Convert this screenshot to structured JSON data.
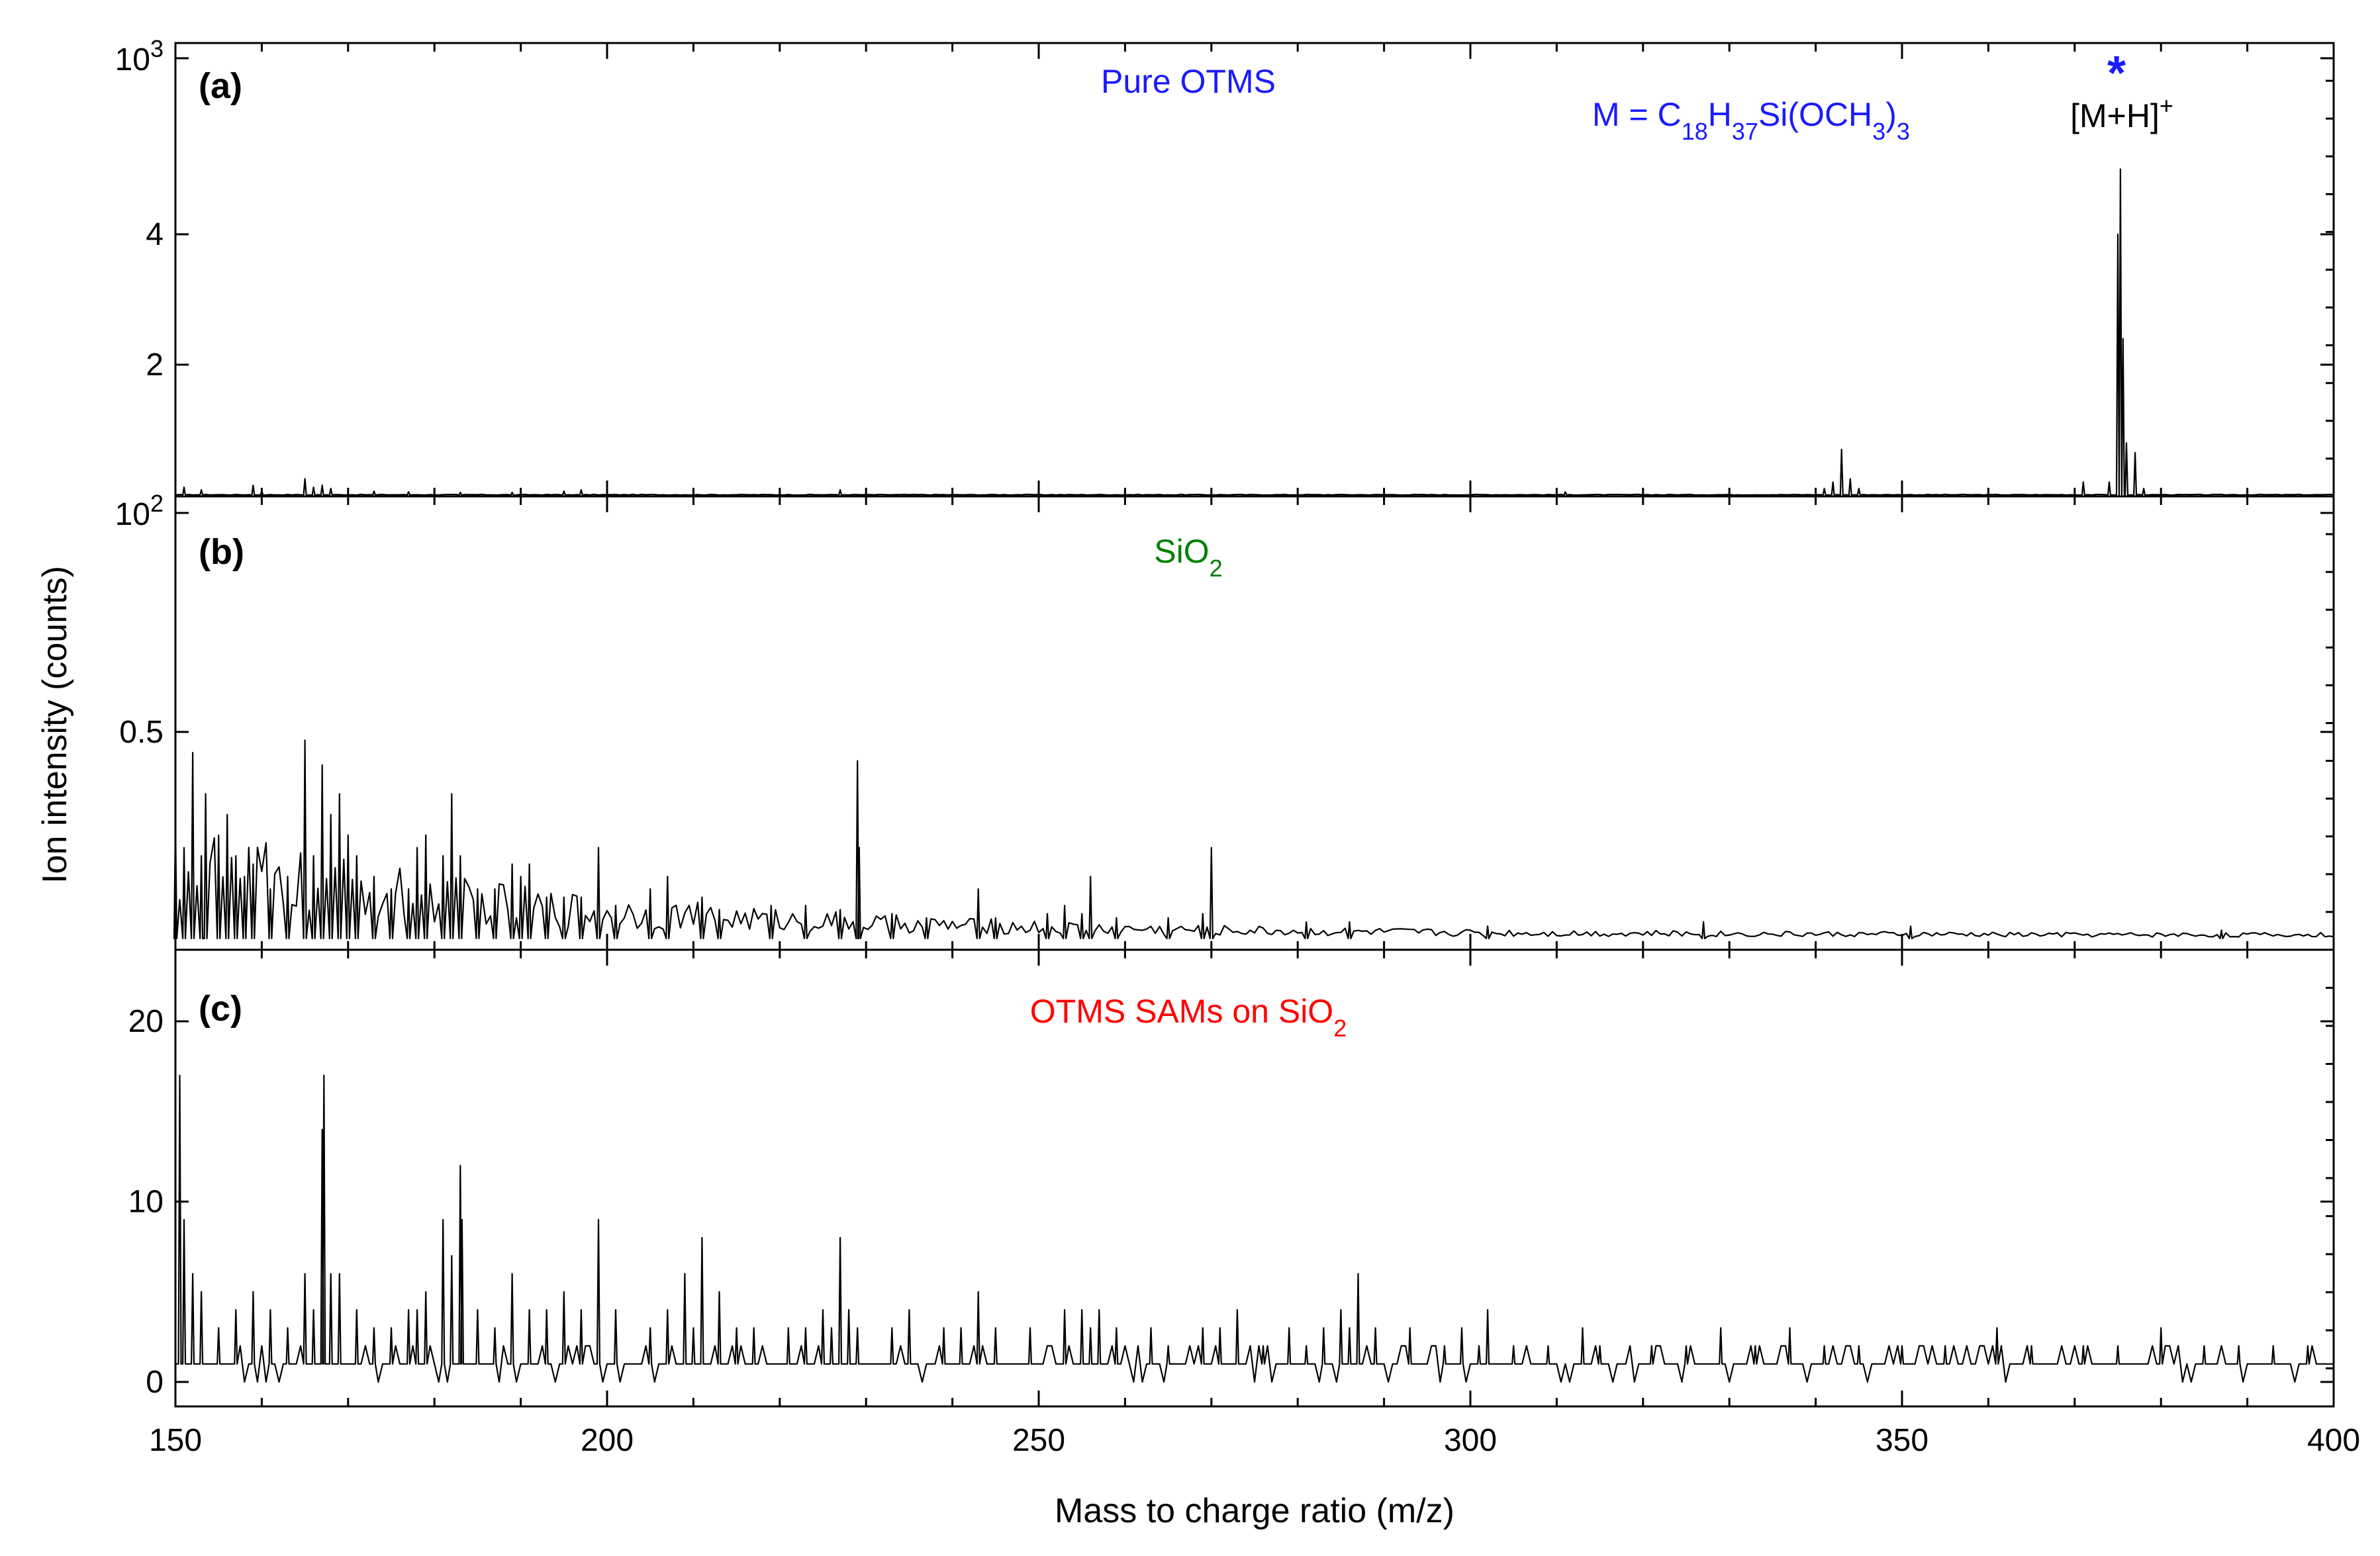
{
  "chart_data": [
    {
      "type": "line",
      "panel_label": "(a)",
      "title": "Pure OTMS",
      "title_color": "#1a1aff",
      "annotations": [
        {
          "text": "M = C18H37Si(OCH3)3",
          "color": "#1a1aff"
        },
        {
          "text": "*",
          "color": "#1a1aff"
        },
        {
          "text": "[M+H]+",
          "color": "#000000"
        }
      ],
      "xlabel": "Mass to charge ratio (m/z)",
      "xlim": [
        150,
        400
      ],
      "ylim": [
        0,
        6.7
      ],
      "y_ticks": [
        {
          "value": 2,
          "label": "2"
        },
        {
          "value": 4,
          "label": "4"
        },
        {
          "value": 6.7,
          "label": "10^3"
        }
      ],
      "series": [
        {
          "peaks": [
            [
              151,
              0.12
            ],
            [
              153,
              0.08
            ],
            [
              159,
              0.15
            ],
            [
              160,
              0.06
            ],
            [
              165,
              0.25
            ],
            [
              166,
              0.12
            ],
            [
              167,
              0.15
            ],
            [
              168,
              0.1
            ],
            [
              173,
              0.06
            ],
            [
              177,
              0.05
            ],
            [
              183,
              0.04
            ],
            [
              189,
              0.04
            ],
            [
              195,
              0.06
            ],
            [
              197,
              0.08
            ],
            [
              227,
              0.08
            ],
            [
              311,
              0.05
            ],
            [
              341,
              0.1
            ],
            [
              342,
              0.2
            ],
            [
              343,
              0.7
            ],
            [
              344,
              0.25
            ],
            [
              345,
              0.1
            ],
            [
              371,
              0.2
            ],
            [
              374,
              0.2
            ],
            [
              375,
              4.0
            ],
            [
              375.3,
              5.0
            ],
            [
              375.6,
              2.4
            ],
            [
              376,
              0.8
            ],
            [
              377,
              0.65
            ],
            [
              378,
              0.1
            ]
          ]
        }
      ]
    },
    {
      "type": "line",
      "panel_label": "(b)",
      "title": "SiO2",
      "title_color": "#008000",
      "xlim": [
        150,
        400
      ],
      "ylim": [
        0,
        1.03
      ],
      "y_ticks": [
        {
          "value": 0.5,
          "label": "0.5"
        },
        {
          "value": 1.03,
          "label": "10^2"
        }
      ],
      "series": [
        {
          "peaks": [
            [
              150,
              0.28
            ],
            [
              151,
              0.22
            ],
            [
              152,
              0.45
            ],
            [
              153,
              0.2
            ],
            [
              153.5,
              0.35
            ],
            [
              155,
              0.25
            ],
            [
              156,
              0.3
            ],
            [
              157,
              0.2
            ],
            [
              158,
              0.15
            ],
            [
              159,
              0.18
            ],
            [
              161,
              0.12
            ],
            [
              163,
              0.15
            ],
            [
              165,
              0.48
            ],
            [
              166,
              0.2
            ],
            [
              167,
              0.42
            ],
            [
              168,
              0.3
            ],
            [
              169,
              0.35
            ],
            [
              170,
              0.25
            ],
            [
              171,
              0.2
            ],
            [
              173,
              0.15
            ],
            [
              175,
              0.12
            ],
            [
              177,
              0.12
            ],
            [
              178,
              0.22
            ],
            [
              179,
              0.25
            ],
            [
              181,
              0.2
            ],
            [
              182,
              0.35
            ],
            [
              183,
              0.2
            ],
            [
              185,
              0.12
            ],
            [
              187,
              0.12
            ],
            [
              189,
              0.18
            ],
            [
              190,
              0.15
            ],
            [
              191,
              0.18
            ],
            [
              193,
              0.1
            ],
            [
              195,
              0.1
            ],
            [
              197,
              0.1
            ],
            [
              199,
              0.22
            ],
            [
              201,
              0.08
            ],
            [
              205,
              0.12
            ],
            [
              207,
              0.15
            ],
            [
              211,
              0.1
            ],
            [
              213,
              0.07
            ],
            [
              219,
              0.08
            ],
            [
              223,
              0.08
            ],
            [
              227,
              0.07
            ],
            [
              229,
              0.43
            ],
            [
              229.2,
              0.22
            ],
            [
              233,
              0.06
            ],
            [
              237,
              0.05
            ],
            [
              243,
              0.12
            ],
            [
              245,
              0.05
            ],
            [
              251,
              0.06
            ],
            [
              253,
              0.08
            ],
            [
              255,
              0.06
            ],
            [
              256,
              0.15
            ],
            [
              259,
              0.05
            ],
            [
              265,
              0.05
            ],
            [
              269,
              0.06
            ],
            [
              270,
              0.22
            ],
            [
              281,
              0.04
            ],
            [
              286,
              0.04
            ],
            [
              302,
              0.03
            ],
            [
              327,
              0.04
            ],
            [
              351,
              0.03
            ],
            [
              387,
              0.02
            ]
          ]
        }
      ]
    },
    {
      "type": "line",
      "panel_label": "(c)",
      "title": "OTMS SAMs on SiO2",
      "title_color": "#ff0000",
      "xlim": [
        150,
        400
      ],
      "ylim": [
        0,
        22.5
      ],
      "y_ticks": [
        {
          "value": 0,
          "label": "0"
        },
        {
          "value": 10,
          "label": "10"
        },
        {
          "value": 20,
          "label": "20"
        }
      ],
      "series": [
        {
          "peaks": [
            [
              150.5,
              17
            ],
            [
              151,
              9
            ],
            [
              152,
              6
            ],
            [
              153,
              5
            ],
            [
              155,
              3
            ],
            [
              157,
              4
            ],
            [
              159,
              5
            ],
            [
              161,
              4
            ],
            [
              163,
              3
            ],
            [
              165,
              6
            ],
            [
              166,
              4
            ],
            [
              167,
              14
            ],
            [
              167.2,
              17
            ],
            [
              168,
              6
            ],
            [
              169,
              6
            ],
            [
              171,
              4
            ],
            [
              173,
              3
            ],
            [
              175,
              3
            ],
            [
              177,
              4
            ],
            [
              178,
              4
            ],
            [
              179,
              5
            ],
            [
              181,
              9
            ],
            [
              182,
              7
            ],
            [
              183,
              12
            ],
            [
              183.2,
              9
            ],
            [
              185,
              4
            ],
            [
              187,
              3
            ],
            [
              189,
              6
            ],
            [
              191,
              4
            ],
            [
              193,
              4
            ],
            [
              195,
              5
            ],
            [
              197,
              4
            ],
            [
              199,
              9
            ],
            [
              201,
              4
            ],
            [
              205,
              3
            ],
            [
              207,
              4
            ],
            [
              209,
              6
            ],
            [
              210,
              3
            ],
            [
              211,
              8
            ],
            [
              213,
              5
            ],
            [
              215,
              3
            ],
            [
              217,
              3
            ],
            [
              221,
              3
            ],
            [
              223,
              3
            ],
            [
              225,
              4
            ],
            [
              226,
              3
            ],
            [
              227,
              8
            ],
            [
              228,
              4
            ],
            [
              229,
              3
            ],
            [
              233,
              3
            ],
            [
              235,
              4
            ],
            [
              239,
              3
            ],
            [
              241,
              3
            ],
            [
              243,
              5
            ],
            [
              245,
              3
            ],
            [
              249,
              3
            ],
            [
              253,
              4
            ],
            [
              255,
              4
            ],
            [
              256,
              3
            ],
            [
              257,
              4
            ],
            [
              259,
              3
            ],
            [
              263,
              3
            ],
            [
              265,
              2
            ],
            [
              269,
              3
            ],
            [
              271,
              3
            ],
            [
              273,
              4
            ],
            [
              276,
              2
            ],
            [
              279,
              3
            ],
            [
              281,
              2
            ],
            [
              283,
              3
            ],
            [
              285,
              4
            ],
            [
              286,
              3
            ],
            [
              287,
              6
            ],
            [
              289,
              3
            ],
            [
              293,
              3
            ],
            [
              297,
              2
            ],
            [
              299,
              3
            ],
            [
              301,
              2
            ],
            [
              302,
              4
            ],
            [
              305,
              2
            ],
            [
              309,
              2
            ],
            [
              313,
              3
            ],
            [
              315,
              2
            ],
            [
              321,
              2
            ],
            [
              325,
              2
            ],
            [
              329,
              3
            ],
            [
              333,
              2
            ],
            [
              337,
              3
            ],
            [
              341,
              2
            ],
            [
              345,
              2
            ],
            [
              350,
              2
            ],
            [
              355,
              2
            ],
            [
              361,
              3
            ],
            [
              365,
              2
            ],
            [
              371,
              2
            ],
            [
              375,
              2
            ],
            [
              380,
              3
            ],
            [
              385,
              2
            ],
            [
              389,
              2
            ],
            [
              393,
              2
            ],
            [
              397,
              2
            ]
          ]
        }
      ]
    }
  ],
  "shared": {
    "ylabel": "Ion intensity (counts)",
    "xlabel": "Mass to charge ratio (m/z)",
    "x_ticks": [
      "150",
      "200",
      "250",
      "300",
      "350",
      "400"
    ]
  }
}
